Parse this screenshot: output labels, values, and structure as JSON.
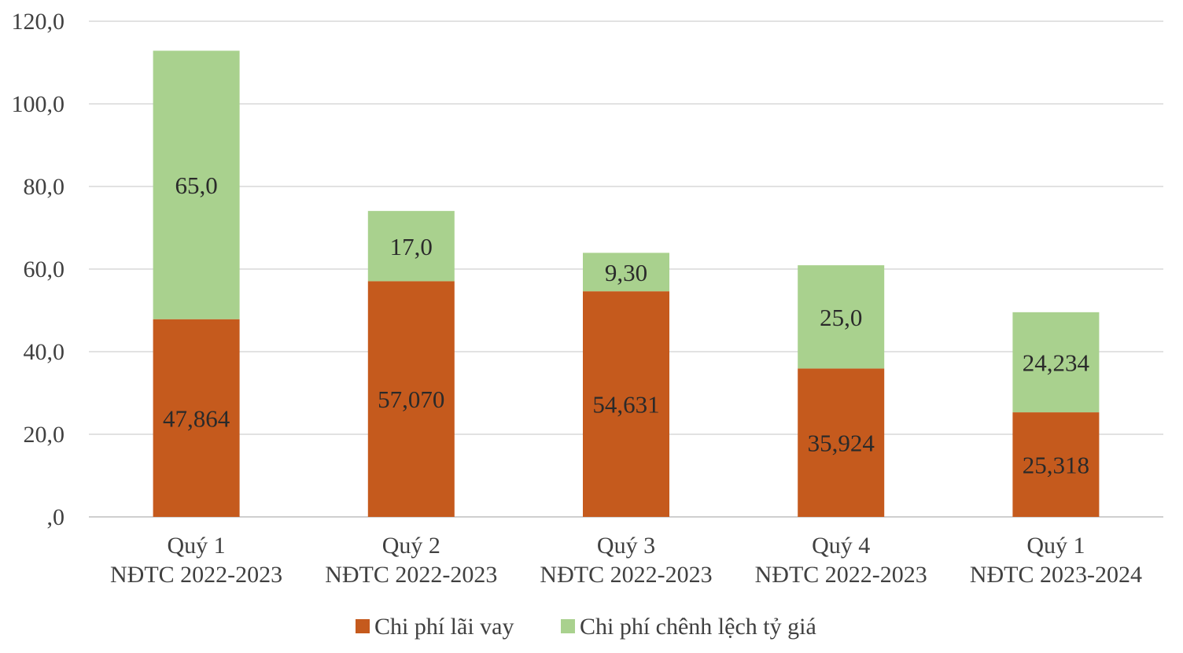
{
  "chart_data": {
    "type": "bar",
    "stacked": true,
    "categories": [
      [
        "Quý 1",
        "NĐTC 2022-2023"
      ],
      [
        "Quý 2",
        "NĐTC 2022-2023"
      ],
      [
        "Quý 3",
        "NĐTC 2022-2023"
      ],
      [
        "Quý 4",
        "NĐTC 2022-2023"
      ],
      [
        "Quý 1",
        "NĐTC 2023-2024"
      ]
    ],
    "series": [
      {
        "name": "Chi phí lãi vay",
        "color": "#C55A1D",
        "values": [
          47.864,
          57.07,
          54.631,
          35.924,
          25.318
        ],
        "labels": [
          "47,864",
          "57,070",
          "54,631",
          "35,924",
          "25,318"
        ]
      },
      {
        "name": "Chi phí chênh lệch tỷ giá",
        "color": "#A9D18E",
        "values": [
          65.0,
          17.0,
          9.3,
          25.0,
          24.234
        ],
        "labels": [
          "65,0",
          "17,0",
          "9,30",
          "25,0",
          "24,234"
        ]
      }
    ],
    "ylim": [
      0,
      120
    ],
    "yticks": [
      0,
      20,
      40,
      60,
      80,
      100,
      120
    ],
    "ytick_labels": [
      ",0",
      "20,0",
      "40,0",
      "60,0",
      "80,0",
      "100,0",
      "120,0"
    ],
    "grid": true,
    "legend_position": "bottom"
  }
}
